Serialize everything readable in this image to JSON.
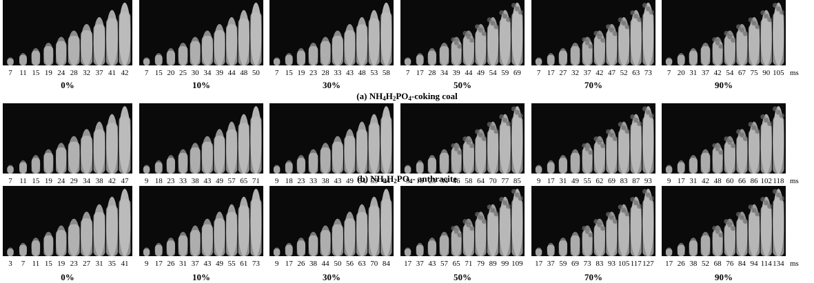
{
  "unit_label": "ms",
  "rows": [
    {
      "caption_prefix": "(a) NH",
      "caption_subs": [
        "4",
        "2",
        "4"
      ],
      "caption_mid": [
        "H",
        "PO"
      ],
      "caption_suffix": "-coking coal",
      "panels": [
        {
          "pct": "0%",
          "ticks": [
            "7",
            "11",
            "15",
            "19",
            "24",
            "28",
            "32",
            "37",
            "41",
            "42"
          ]
        },
        {
          "pct": "10%",
          "ticks": [
            "7",
            "15",
            "20",
            "25",
            "30",
            "34",
            "39",
            "44",
            "48",
            "50"
          ]
        },
        {
          "pct": "30%",
          "ticks": [
            "7",
            "15",
            "19",
            "23",
            "28",
            "33",
            "43",
            "48",
            "53",
            "58"
          ]
        },
        {
          "pct": "50%",
          "ticks": [
            "7",
            "17",
            "28",
            "34",
            "39",
            "44",
            "49",
            "54",
            "59",
            "69"
          ]
        },
        {
          "pct": "70%",
          "ticks": [
            "7",
            "17",
            "27",
            "32",
            "37",
            "42",
            "47",
            "52",
            "63",
            "73"
          ]
        },
        {
          "pct": "90%",
          "ticks": [
            "7",
            "20",
            "31",
            "37",
            "42",
            "54",
            "67",
            "75",
            "90",
            "105"
          ]
        }
      ]
    },
    {
      "caption_prefix": "(b) NH",
      "caption_subs": [
        "4",
        "2",
        "4"
      ],
      "caption_mid": [
        "H",
        "PO"
      ],
      "caption_suffix": "- anthracite",
      "panels": [
        {
          "pct": "0%",
          "ticks": [
            "7",
            "11",
            "15",
            "19",
            "24",
            "29",
            "34",
            "38",
            "42",
            "47"
          ]
        },
        {
          "pct": "10%",
          "ticks": [
            "9",
            "18",
            "23",
            "33",
            "38",
            "43",
            "49",
            "57",
            "65",
            "71"
          ]
        },
        {
          "pct": "30%",
          "ticks": [
            "9",
            "18",
            "23",
            "33",
            "38",
            "43",
            "49",
            "54",
            "59",
            "64"
          ]
        },
        {
          "pct": "50%",
          "ticks": [
            "9",
            "18",
            "23",
            "34",
            "46",
            "58",
            "64",
            "70",
            "77",
            "85"
          ]
        },
        {
          "pct": "70%",
          "ticks": [
            "9",
            "17",
            "31",
            "49",
            "55",
            "62",
            "69",
            "83",
            "87",
            "93"
          ]
        },
        {
          "pct": "90%",
          "ticks": [
            "9",
            "17",
            "31",
            "42",
            "48",
            "60",
            "66",
            "86",
            "102",
            "118"
          ]
        }
      ]
    },
    {
      "caption_prefix": "",
      "caption_subs": [],
      "caption_mid": [],
      "caption_suffix": "",
      "panels": [
        {
          "pct": "0%",
          "ticks": [
            "3",
            "7",
            "11",
            "15",
            "19",
            "23",
            "27",
            "31",
            "35",
            "41"
          ]
        },
        {
          "pct": "10%",
          "ticks": [
            "9",
            "17",
            "26",
            "31",
            "37",
            "43",
            "49",
            "55",
            "61",
            "73"
          ]
        },
        {
          "pct": "30%",
          "ticks": [
            "9",
            "17",
            "26",
            "38",
            "44",
            "50",
            "56",
            "63",
            "70",
            "84"
          ]
        },
        {
          "pct": "50%",
          "ticks": [
            "17",
            "37",
            "43",
            "57",
            "65",
            "71",
            "79",
            "89",
            "99",
            "109"
          ]
        },
        {
          "pct": "70%",
          "ticks": [
            "17",
            "37",
            "59",
            "69",
            "73",
            "83",
            "93",
            "105",
            "117",
            "127"
          ]
        },
        {
          "pct": "90%",
          "ticks": [
            "17",
            "26",
            "38",
            "52",
            "68",
            "76",
            "84",
            "94",
            "114",
            "134"
          ]
        }
      ]
    }
  ]
}
